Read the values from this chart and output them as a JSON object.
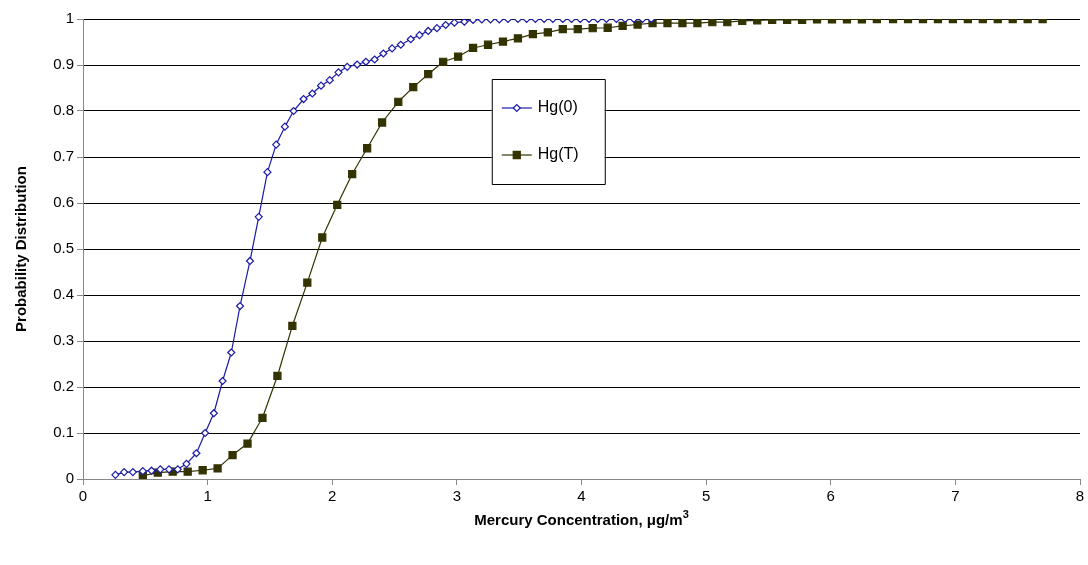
{
  "chart_data": {
    "type": "line",
    "xlabel": "Mercury Concentration, μg/m$^{3}$",
    "ylabel": "Probability Distribution",
    "xlim": [
      0,
      8
    ],
    "xticks": [
      0,
      1,
      2,
      3,
      4,
      5,
      6,
      7,
      8
    ],
    "ylim": [
      0,
      1
    ],
    "yticks": [
      0,
      0.1,
      0.2,
      0.3,
      0.4,
      0.5,
      0.6,
      0.7,
      0.8,
      0.9,
      1
    ],
    "grid": "y",
    "legend": "top",
    "series": [
      {
        "name": "Hg(0)",
        "color": "#1a1aa6",
        "marker": "diamond",
        "x": [
          0.26,
          0.33,
          0.4,
          0.48,
          0.55,
          0.62,
          0.69,
          0.76,
          0.83,
          0.91,
          0.98,
          1.05,
          1.12,
          1.19,
          1.26,
          1.34,
          1.41,
          1.48,
          1.55,
          1.62,
          1.69,
          1.77,
          1.84,
          1.91,
          1.98,
          2.05,
          2.12,
          2.2,
          2.27,
          2.34,
          2.41,
          2.48,
          2.55,
          2.63,
          2.7,
          2.77,
          2.84,
          2.91,
          2.98,
          3.06,
          3.13,
          3.2,
          3.27,
          3.34,
          3.41,
          3.49,
          3.56,
          3.63,
          3.7,
          3.77,
          3.85,
          3.92,
          3.99,
          4.06,
          4.13,
          4.2,
          4.28,
          4.35,
          4.42,
          4.49,
          4.56
        ],
        "values": [
          0.009,
          0.015,
          0.015,
          0.017,
          0.018,
          0.021,
          0.021,
          0.021,
          0.033,
          0.056,
          0.1,
          0.143,
          0.213,
          0.275,
          0.376,
          0.474,
          0.57,
          0.667,
          0.727,
          0.766,
          0.8,
          0.826,
          0.838,
          0.855,
          0.867,
          0.884,
          0.896,
          0.901,
          0.907,
          0.912,
          0.925,
          0.936,
          0.944,
          0.956,
          0.965,
          0.974,
          0.98,
          0.987,
          0.992,
          0.994,
          0.998,
          0.999,
          0.999,
          0.999,
          1,
          1,
          1,
          1,
          1,
          1,
          1,
          1,
          1,
          1,
          1,
          1,
          1,
          1,
          1,
          1,
          1
        ]
      },
      {
        "name": "Hg(T)",
        "color": "#333300",
        "marker": "square",
        "x": [
          0.48,
          0.6,
          0.72,
          0.84,
          0.96,
          1.08,
          1.2,
          1.32,
          1.44,
          1.56,
          1.68,
          1.8,
          1.92,
          2.04,
          2.16,
          2.28,
          2.4,
          2.53,
          2.65,
          2.77,
          2.89,
          3.01,
          3.13,
          3.25,
          3.37,
          3.49,
          3.61,
          3.73,
          3.85,
          3.97,
          4.09,
          4.21,
          4.33,
          4.45,
          4.57,
          4.69,
          4.81,
          4.93,
          5.05,
          5.17,
          5.29,
          5.41,
          5.53,
          5.65,
          5.77,
          5.89,
          6.01,
          6.13,
          6.25,
          6.37,
          6.5,
          6.62,
          6.74,
          6.86,
          6.98,
          7.1,
          7.22,
          7.34,
          7.46,
          7.58,
          7.7
        ],
        "values": [
          0.007,
          0.014,
          0.016,
          0.016,
          0.019,
          0.023,
          0.052,
          0.077,
          0.133,
          0.224,
          0.333,
          0.427,
          0.525,
          0.596,
          0.663,
          0.719,
          0.775,
          0.82,
          0.852,
          0.88,
          0.907,
          0.918,
          0.937,
          0.944,
          0.951,
          0.958,
          0.967,
          0.971,
          0.978,
          0.978,
          0.98,
          0.981,
          0.985,
          0.988,
          0.991,
          0.991,
          0.991,
          0.991,
          0.993,
          0.993,
          0.996,
          0.997,
          0.998,
          0.998,
          0.998,
          0.999,
          0.999,
          0.999,
          0.999,
          1,
          1,
          1,
          1,
          1,
          1,
          1,
          1,
          1,
          1,
          1,
          1
        ]
      }
    ]
  }
}
